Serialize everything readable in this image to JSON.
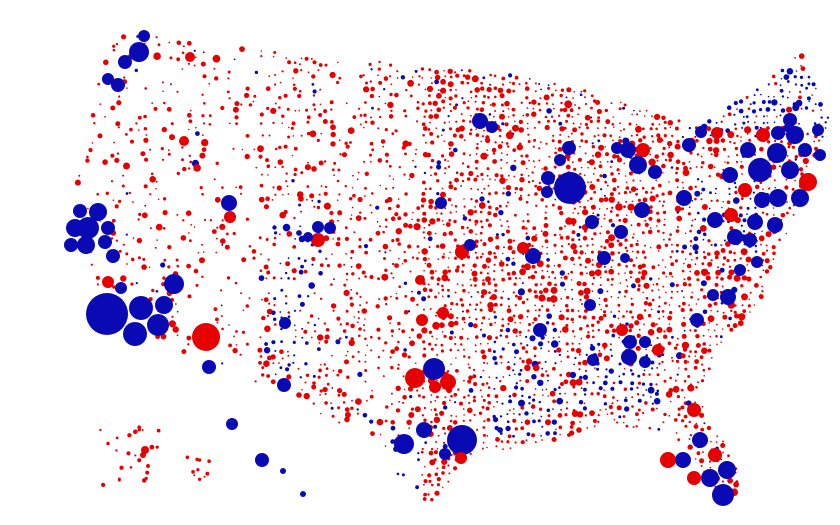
{
  "map": {
    "type": "bubble map of county results",
    "colors": {
      "democrat": "#0a0ab4",
      "republican": "#e60000",
      "background": "#ffffff"
    },
    "legend": null
  }
}
